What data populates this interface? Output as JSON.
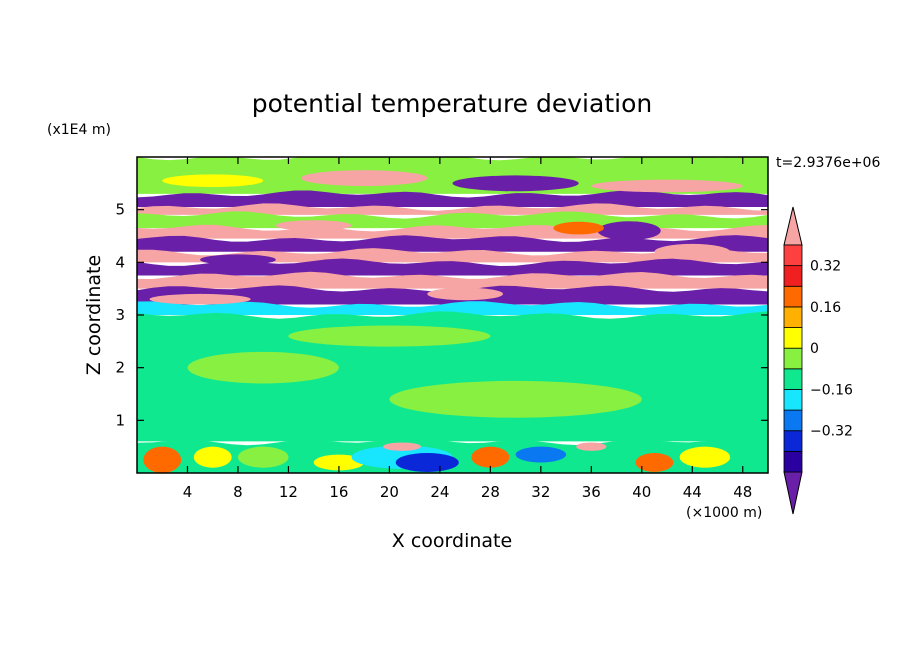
{
  "chart_data": {
    "type": "heatmap",
    "title": "potential temperature deviation",
    "xlabel": "X coordinate",
    "ylabel": "Z coordinate",
    "x_unit": "(×1000 m)",
    "y_unit": "(x1E4 m)",
    "time_label": "t=2.9376e+06",
    "xlim": [
      0,
      50
    ],
    "ylim": [
      0,
      6
    ],
    "x_ticks": [
      4,
      8,
      12,
      16,
      20,
      24,
      28,
      32,
      36,
      40,
      44,
      48
    ],
    "y_ticks": [
      1,
      2,
      3,
      4,
      5
    ],
    "colorbar": {
      "levels": [
        -0.48,
        -0.4,
        -0.32,
        -0.24,
        -0.16,
        -0.08,
        0,
        0.08,
        0.16,
        0.24,
        0.32,
        0.4,
        0.48
      ],
      "colors": [
        "#6a1fa8",
        "#2a00a0",
        "#0a28d8",
        "#0a78f0",
        "#18e6ff",
        "#10e890",
        "#88f040",
        "#ffff00",
        "#ffb000",
        "#ff6a00",
        "#f02020",
        "#ff4040",
        "#f6a4a4"
      ],
      "tick_labels": [
        "0.32",
        "0.16",
        "0",
        "−0.16",
        "−0.32"
      ],
      "tick_values": [
        0.32,
        0.16,
        0,
        -0.16,
        -0.32
      ]
    },
    "layers": [
      {
        "zmin": 5.3,
        "zmax": 6.0,
        "color": "#88f040"
      },
      {
        "zmin": 5.05,
        "zmax": 5.3,
        "color": "#6a1fa8"
      },
      {
        "zmin": 4.9,
        "zmax": 5.05,
        "color": "#f6a4a4"
      },
      {
        "zmin": 4.65,
        "zmax": 4.9,
        "color": "#88f040"
      },
      {
        "zmin": 4.45,
        "zmax": 4.65,
        "color": "#f6a4a4"
      },
      {
        "zmin": 4.2,
        "zmax": 4.45,
        "color": "#6a1fa8"
      },
      {
        "zmin": 4.0,
        "zmax": 4.2,
        "color": "#f6a4a4"
      },
      {
        "zmin": 3.75,
        "zmax": 4.0,
        "color": "#6a1fa8"
      },
      {
        "zmin": 3.5,
        "zmax": 3.75,
        "color": "#f6a4a4"
      },
      {
        "zmin": 3.2,
        "zmax": 3.5,
        "color": "#6a1fa8"
      },
      {
        "zmin": 3.0,
        "zmax": 3.2,
        "color": "#18e6ff"
      },
      {
        "zmin": 0.6,
        "zmax": 3.0,
        "color": "#10e890"
      },
      {
        "zmin": 0.0,
        "zmax": 0.6,
        "color": "#10e890"
      }
    ],
    "blobs": [
      {
        "x": 6,
        "z": 5.55,
        "rx": 4,
        "rz": 0.12,
        "color": "#ffff00"
      },
      {
        "x": 18,
        "z": 5.6,
        "rx": 5,
        "rz": 0.15,
        "color": "#f6a4a4"
      },
      {
        "x": 30,
        "z": 5.5,
        "rx": 5,
        "rz": 0.15,
        "color": "#6a1fa8"
      },
      {
        "x": 42,
        "z": 5.45,
        "rx": 6,
        "rz": 0.12,
        "color": "#f6a4a4"
      },
      {
        "x": 39,
        "z": 4.6,
        "rx": 2.5,
        "rz": 0.18,
        "color": "#6a1fa8"
      },
      {
        "x": 35,
        "z": 4.65,
        "rx": 2,
        "rz": 0.12,
        "color": "#ff6a00"
      },
      {
        "x": 14,
        "z": 4.7,
        "rx": 3,
        "rz": 0.1,
        "color": "#f6a4a4"
      },
      {
        "x": 44,
        "z": 4.2,
        "rx": 3,
        "rz": 0.15,
        "color": "#f6a4a4"
      },
      {
        "x": 8,
        "z": 4.05,
        "rx": 3,
        "rz": 0.1,
        "color": "#6a1fa8"
      },
      {
        "x": 26,
        "z": 3.4,
        "rx": 3,
        "rz": 0.12,
        "color": "#f6a4a4"
      },
      {
        "x": 5,
        "z": 3.3,
        "rx": 4,
        "rz": 0.1,
        "color": "#f6a4a4"
      },
      {
        "x": 2,
        "z": 0.25,
        "rx": 1.5,
        "rz": 0.25,
        "color": "#ff6a00"
      },
      {
        "x": 6,
        "z": 0.3,
        "rx": 1.5,
        "rz": 0.2,
        "color": "#ffff00"
      },
      {
        "x": 10,
        "z": 0.3,
        "rx": 2,
        "rz": 0.2,
        "color": "#88f040"
      },
      {
        "x": 16,
        "z": 0.2,
        "rx": 2,
        "rz": 0.15,
        "color": "#ffff00"
      },
      {
        "x": 21,
        "z": 0.3,
        "rx": 4,
        "rz": 0.22,
        "color": "#18e6ff"
      },
      {
        "x": 23,
        "z": 0.2,
        "rx": 2.5,
        "rz": 0.18,
        "color": "#0a28d8"
      },
      {
        "x": 21,
        "z": 0.5,
        "rx": 1.5,
        "rz": 0.08,
        "color": "#f6a4a4"
      },
      {
        "x": 28,
        "z": 0.3,
        "rx": 1.5,
        "rz": 0.2,
        "color": "#ff6a00"
      },
      {
        "x": 32,
        "z": 0.35,
        "rx": 2,
        "rz": 0.15,
        "color": "#0a78f0"
      },
      {
        "x": 36,
        "z": 0.5,
        "rx": 1.2,
        "rz": 0.08,
        "color": "#f6a4a4"
      },
      {
        "x": 41,
        "z": 0.2,
        "rx": 1.5,
        "rz": 0.18,
        "color": "#ff6a00"
      },
      {
        "x": 45,
        "z": 0.3,
        "rx": 2,
        "rz": 0.2,
        "color": "#ffff00"
      },
      {
        "x": 10,
        "z": 2.0,
        "rx": 6,
        "rz": 0.3,
        "color": "#88f040"
      },
      {
        "x": 30,
        "z": 1.4,
        "rx": 10,
        "rz": 0.35,
        "color": "#88f040"
      },
      {
        "x": 20,
        "z": 2.6,
        "rx": 8,
        "rz": 0.2,
        "color": "#88f040"
      }
    ]
  }
}
